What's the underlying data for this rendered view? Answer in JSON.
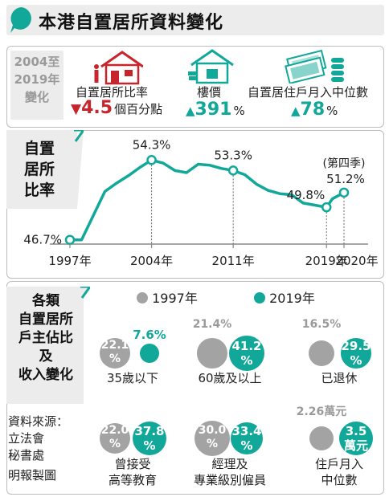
{
  "header": {
    "title": "本港自置居所資料變化"
  },
  "summary": {
    "period": [
      "2004至",
      "2019年",
      "變化"
    ],
    "ownership_rate": {
      "label": "自置居所比率",
      "arrow": "▼",
      "value": "4.5",
      "unit": "個百分點"
    },
    "price": {
      "label": "樓價",
      "arrow": "▲",
      "value": "391",
      "unit": "%"
    },
    "income": {
      "label": "自置居住戶月入中位數",
      "arrow": "▲",
      "value": "78",
      "unit": "%"
    }
  },
  "line_panel": {
    "title": [
      "自置",
      "居所",
      "比率"
    ]
  },
  "groups_panel": {
    "title": [
      "各類",
      "自置居所",
      "戶主佔比",
      "及",
      "收入變化"
    ]
  },
  "legend": {
    "y1997": "1997年",
    "y2019": "2019年"
  },
  "source": [
    "資料來源：",
    "立法會",
    "秘書處",
    "明報製圖"
  ],
  "chart_data": [
    {
      "type": "line",
      "title": "自置居所比率",
      "xlabel": "",
      "ylabel": "",
      "unit": "%",
      "ylim": [
        44,
        57
      ],
      "x_ticks": [
        "1997年",
        "2004年",
        "2011年",
        "2019年",
        "2020年"
      ],
      "tick_x": [
        1997,
        2004,
        2011,
        2019,
        2020.5
      ],
      "x": [
        1997,
        1998,
        1999,
        2000,
        2001,
        2002,
        2003,
        2004,
        2005,
        2006,
        2007,
        2008,
        2009,
        2010,
        2011,
        2012,
        2013,
        2014,
        2015,
        2016,
        2017,
        2018,
        2019,
        2019.5,
        2020.5
      ],
      "values": [
        46.7,
        46.7,
        49.0,
        51.3,
        52.1,
        52.8,
        53.6,
        54.3,
        54.0,
        53.3,
        53.1,
        53.9,
        53.8,
        53.5,
        53.3,
        52.9,
        52.0,
        51.4,
        51.1,
        51.0,
        50.2,
        50.0,
        49.8,
        50.6,
        51.2
      ],
      "annotations": [
        {
          "x": 1997,
          "label": "46.7%"
        },
        {
          "x": 2004,
          "label": "54.3%"
        },
        {
          "x": 2011,
          "label": "53.3%"
        },
        {
          "x": 2019,
          "label": "49.8%"
        },
        {
          "x": 2020.5,
          "label": "51.2%",
          "note": "(第四季)"
        }
      ],
      "legend": "none",
      "grid": false
    },
    {
      "type": "bubble",
      "title": "各類自置居所戶主佔比及收入變化",
      "series": [
        {
          "name": "1997年",
          "color": "#a3a3a3"
        },
        {
          "name": "2019年",
          "color": "#11a89a"
        }
      ],
      "categories": [
        {
          "name": "35歲以下",
          "y1997": 22.1,
          "y2019": 7.6,
          "label1997": "22.1%",
          "label2019": "7.6%"
        },
        {
          "name": "60歲及以上",
          "y1997": 21.4,
          "y2019": 41.2,
          "label1997": "21.4%",
          "label2019": "41.2%"
        },
        {
          "name": "已退休",
          "y1997": 16.5,
          "y2019": 29.5,
          "label1997": "16.5%",
          "label2019": "29.5%"
        },
        {
          "name": "曾接受高等教育",
          "y1997": 22.0,
          "y2019": 37.8,
          "label1997": "22.0%",
          "label2019": "37.8%"
        },
        {
          "name": "經理及專業級別僱員",
          "y1997": 30.0,
          "y2019": 33.4,
          "label1997": "30.0%",
          "label2019": "33.4%"
        },
        {
          "name": "住戶月入中位數",
          "y1997": 2.26,
          "y2019": 3.5,
          "label1997": "2.26萬元",
          "label2019": "3.5萬元",
          "unit": "萬元"
        }
      ]
    }
  ]
}
